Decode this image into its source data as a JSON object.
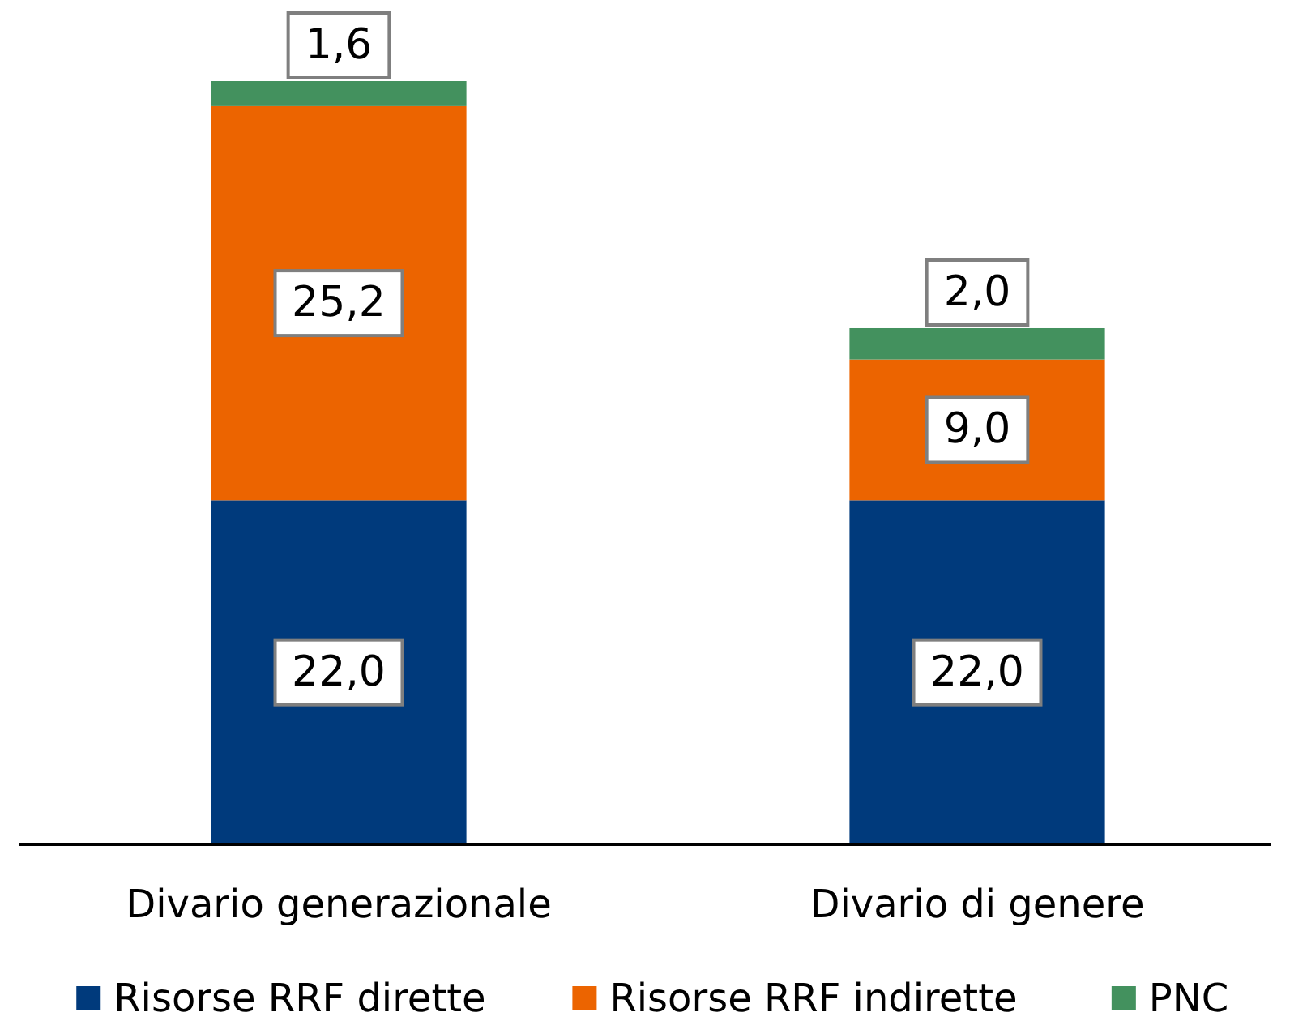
{
  "chart_data": {
    "type": "bar",
    "stacked": true,
    "legend": "bottom",
    "categories": [
      "Divario generazionale",
      "Divario di genere"
    ],
    "series": [
      {
        "name": "Risorse RRF dirette",
        "color": "#003a7c",
        "values": [
          22.0,
          22.0
        ],
        "value_labels": [
          "22,0",
          "22,0"
        ]
      },
      {
        "name": "Risorse RRF indirette",
        "color": "#ec6400",
        "values": [
          25.2,
          9.0
        ],
        "value_labels": [
          "25,2",
          "9,0"
        ]
      },
      {
        "name": "PNC",
        "color": "#43915e",
        "values": [
          1.6,
          2.0
        ],
        "value_labels": [
          "1,6",
          "2,0"
        ]
      }
    ]
  }
}
